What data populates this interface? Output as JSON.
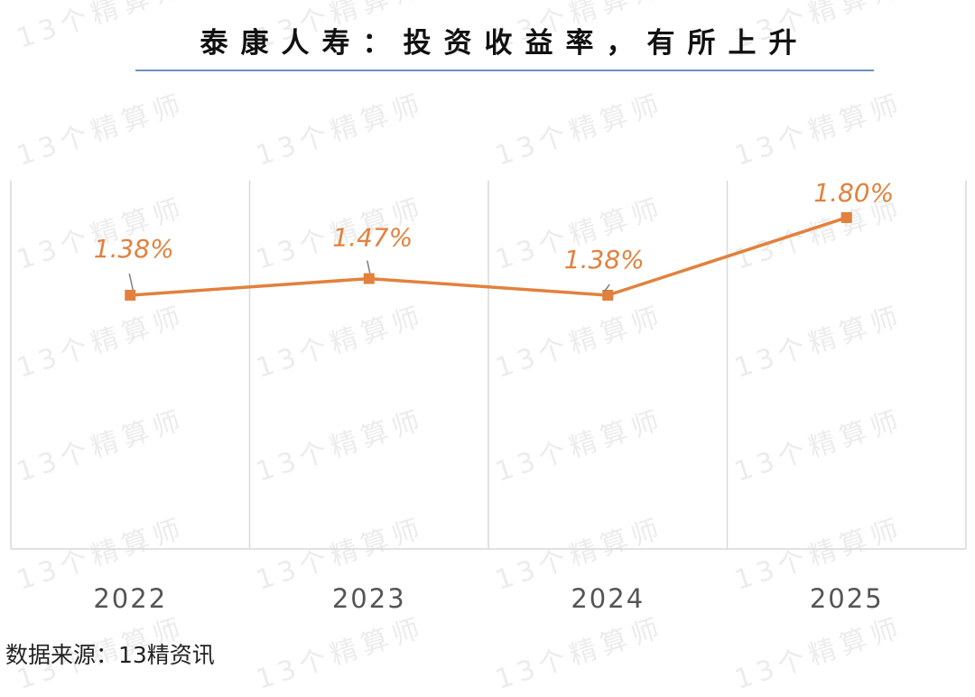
{
  "watermark_text": "13个精算师",
  "chart_data": {
    "type": "line",
    "title": "泰康人寿：投资收益率，有所上升",
    "categories": [
      "2022",
      "2023",
      "2024",
      "2025"
    ],
    "series": [
      {
        "values": [
          1.38,
          1.47,
          1.38,
          1.8
        ],
        "labels": [
          "1.38%",
          "1.47%",
          "1.38%",
          "1.80%"
        ],
        "color": "#e2813d"
      }
    ],
    "ylim": [
      0,
      2.0
    ],
    "xlabel": "",
    "ylabel": "",
    "grid": "vertical category separators",
    "legend": "none"
  },
  "source": "数据来源：13精资讯",
  "colors": {
    "line": "#e2813d",
    "grid": "#d9d9d9",
    "title_rule": "#6e8fc2"
  }
}
